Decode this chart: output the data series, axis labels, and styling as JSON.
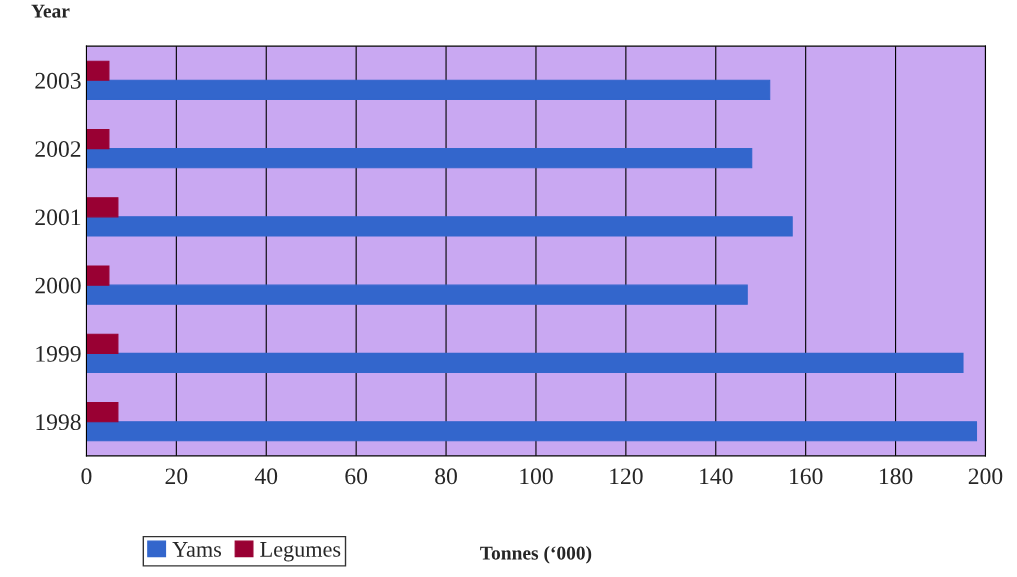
{
  "chart_data": {
    "type": "bar",
    "orientation": "horizontal",
    "ylabel": "Year",
    "xlabel": "Tonnes (‘000)",
    "categories": [
      "2003",
      "2002",
      "2001",
      "2000",
      "1999",
      "1998"
    ],
    "series": [
      {
        "name": "Yams",
        "color": "#3366cc",
        "values": [
          152,
          148,
          157,
          147,
          195,
          198
        ]
      },
      {
        "name": "Legumes",
        "color": "#990033",
        "values": [
          5,
          5,
          7,
          5,
          7,
          7
        ]
      }
    ],
    "xlim": [
      0,
      200
    ],
    "xticks": [
      0,
      20,
      40,
      60,
      80,
      100,
      120,
      140,
      160,
      180,
      200
    ],
    "grid": "x",
    "legend": "bottom left"
  }
}
